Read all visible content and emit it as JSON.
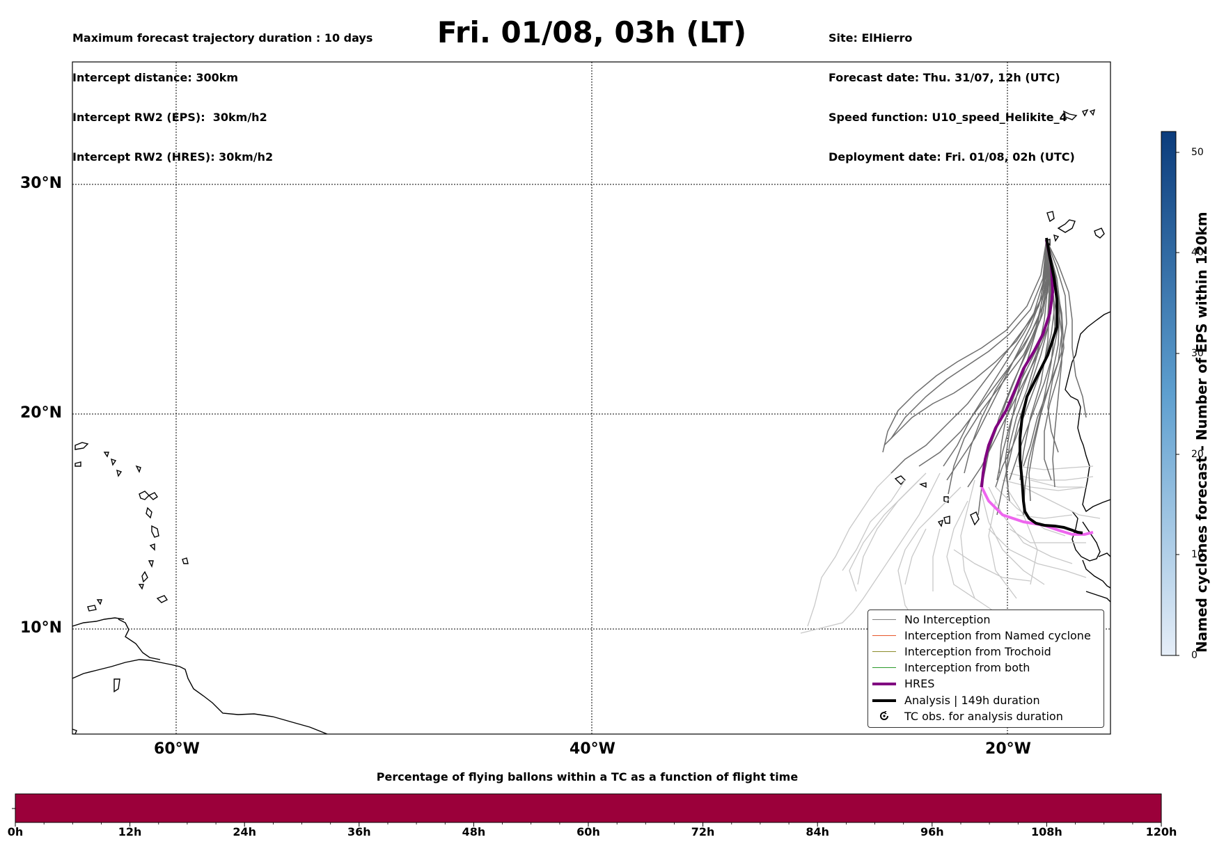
{
  "header": {
    "left_lines": [
      "Maximum forecast trajectory duration : 10 days",
      "Intercept distance: 300km",
      "Intercept RW2 (EPS):  30km/h2",
      "Intercept RW2 (HRES): 30km/h2"
    ],
    "title": "Fri. 01/08, 03h (LT)",
    "right_lines": [
      "Site: ElHierro",
      "Forecast date: Thu. 31/07, 12h (UTC)",
      "Speed function: U10_speed_Helikite_4",
      "Deployment date: Fri. 01/08, 02h (UTC)"
    ]
  },
  "map": {
    "lat_labels": [
      "30°N",
      "20°N",
      "10°N"
    ],
    "lon_labels": [
      "60°W",
      "40°W",
      "20°W"
    ],
    "colors": {
      "no_interception": "#6e6e6e",
      "no_interception_late": "#c8c8c8",
      "hres": "#800080",
      "hres_late": "#ee66ee",
      "analysis": "#000000"
    }
  },
  "legend": {
    "items": [
      {
        "label": "No Interception",
        "color": "#808080",
        "style": "thin"
      },
      {
        "label": "Interception from Named cyclone",
        "color": "#e8562a",
        "style": "thin"
      },
      {
        "label": "Interception from Trochoid",
        "color": "#8b8b2a",
        "style": "thin"
      },
      {
        "label": "Interception from both",
        "color": "#2a9a2a",
        "style": "thin"
      },
      {
        "label": "HRES",
        "color": "#800080",
        "style": "thick"
      },
      {
        "label": "Analysis | 149h duration",
        "color": "#000000",
        "style": "thick"
      },
      {
        "label": "TC obs. for analysis duration",
        "color": "#000000",
        "style": "symbol",
        "icon": "cyclone-icon"
      }
    ]
  },
  "colorbar": {
    "title": "Named cyclones forecast - Number of EPS within 120km",
    "ticks": [
      "0",
      "10",
      "20",
      "30",
      "40",
      "50"
    ],
    "max": 52,
    "color_low": "#e6eef8",
    "color_high": "#0b3c7c"
  },
  "time_bar": {
    "title": "Percentage of flying ballons within a TC as a function of flight time",
    "fill_color": "#9b003a",
    "ticks": [
      "0h",
      "12h",
      "24h",
      "36h",
      "48h",
      "60h",
      "72h",
      "84h",
      "96h",
      "108h",
      "120h"
    ]
  }
}
